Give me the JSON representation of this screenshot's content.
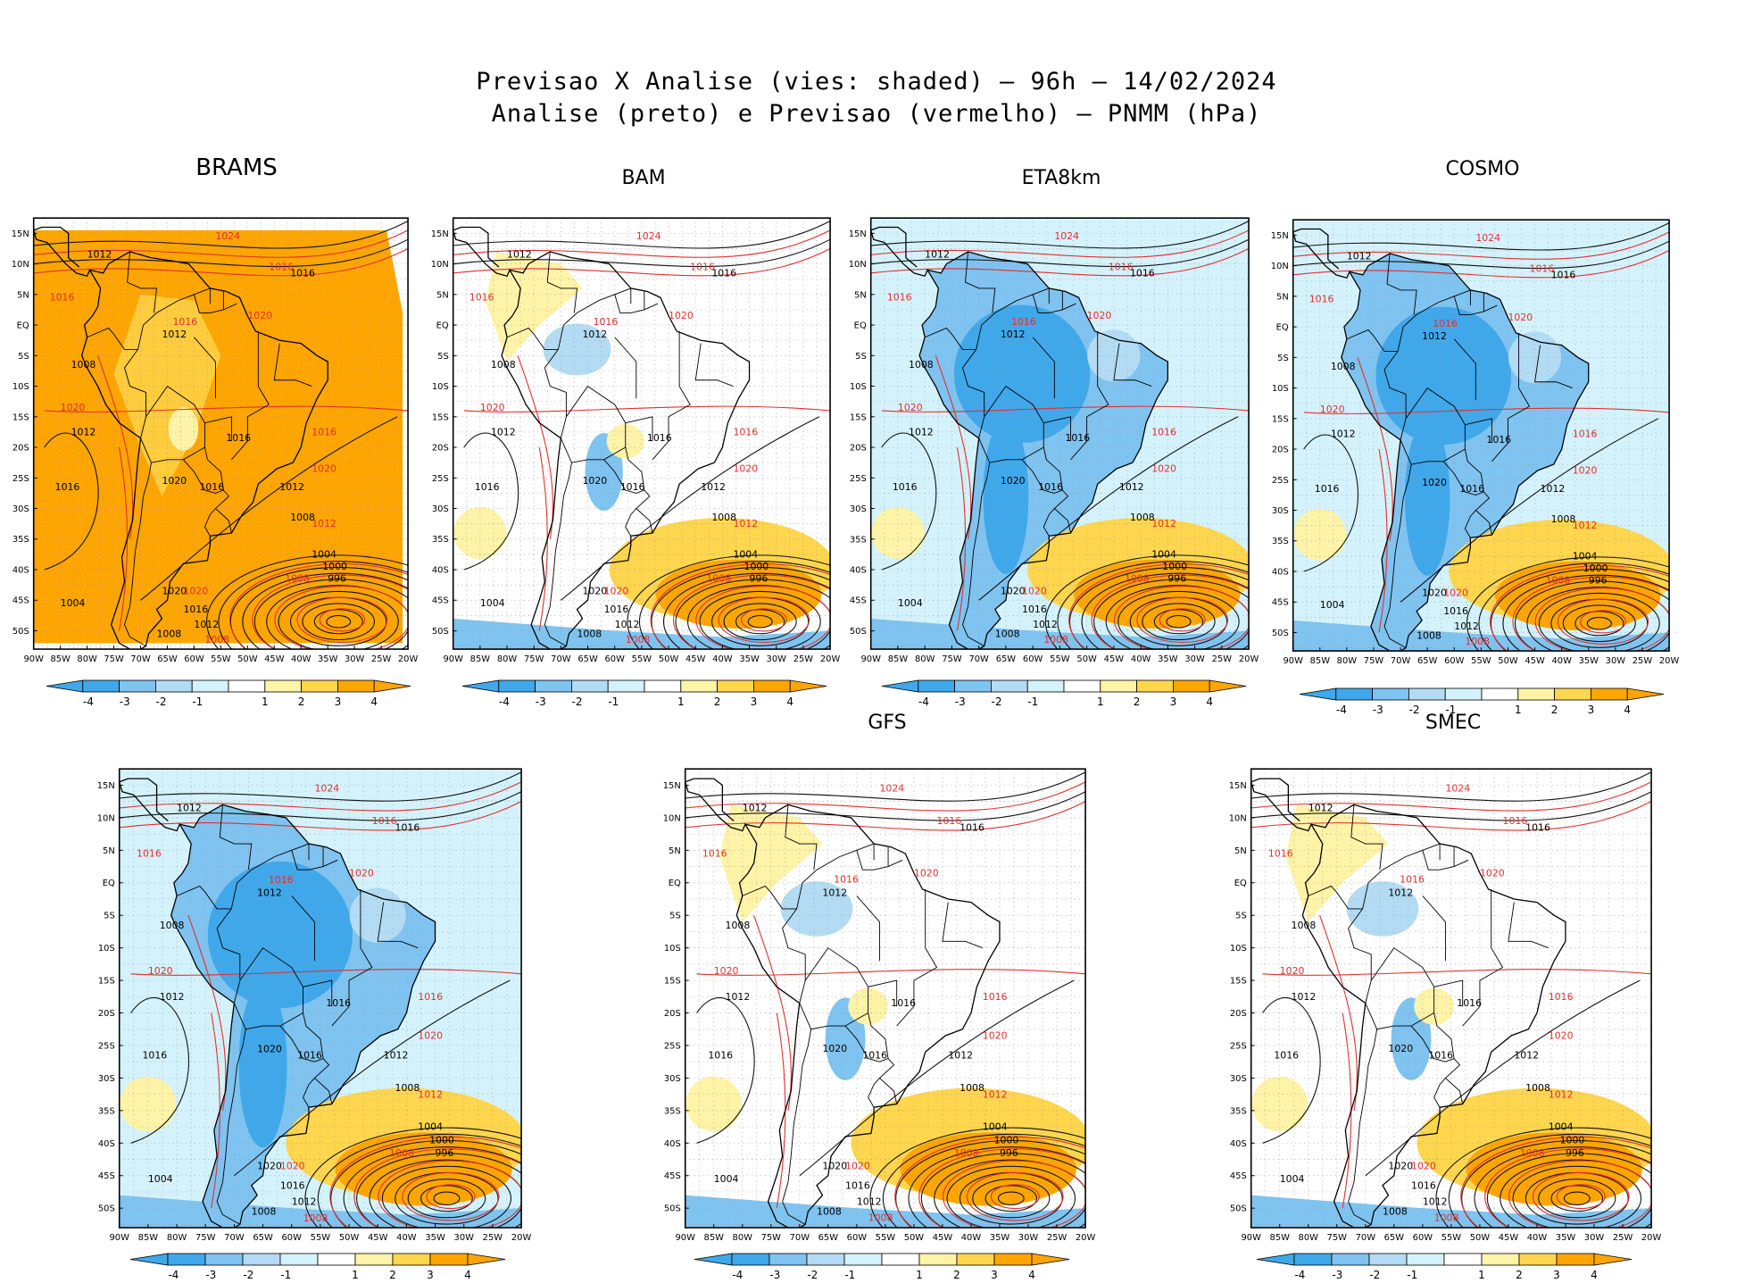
{
  "figure": {
    "title_line1": "Previsao X Analise (vies: shaded) – 96h – 14/02/2024",
    "title_line2": "Analise (preto) e Previsao (vermelho) – PNMM (hPa)"
  },
  "axes": {
    "lat_labels": [
      "15N",
      "10N",
      "5N",
      "EQ",
      "5S",
      "10S",
      "15S",
      "20S",
      "25S",
      "30S",
      "35S",
      "40S",
      "45S",
      "50S"
    ],
    "lon_labels": [
      "90W",
      "85W",
      "80W",
      "75W",
      "70W",
      "65W",
      "60W",
      "55W",
      "50W",
      "45W",
      "40W",
      "35W",
      "30W",
      "25W",
      "20W"
    ]
  },
  "colorbar": {
    "labels": [
      "-4",
      "-3",
      "-2",
      "-1",
      "1",
      "2",
      "3",
      "4"
    ],
    "colors": [
      "#3fa8ea",
      "#7fc3f0",
      "#b3dcf4",
      "#d4f2fb",
      "#ffffff",
      "#fff3a8",
      "#ffd64d",
      "#ffa500"
    ]
  },
  "panels": [
    {
      "id": "brams",
      "name": "BRAMS",
      "bias_mode": "warm"
    },
    {
      "id": "bam",
      "name": "BAM",
      "bias_mode": "mixed"
    },
    {
      "id": "eta8km",
      "name": "ETA8km",
      "bias_mode": "cold"
    },
    {
      "id": "cosmo",
      "name": "COSMO",
      "bias_mode": "cold"
    },
    {
      "id": "unnamed",
      "name": "",
      "bias_mode": "cold"
    },
    {
      "id": "gfs",
      "name": "GFS",
      "bias_mode": "mixed"
    },
    {
      "id": "smec",
      "name": "SMEC",
      "bias_mode": "mixed"
    }
  ],
  "isobar_labels": {
    "analysis": [
      {
        "text": "1012",
        "lon": -80,
        "lat": 11
      },
      {
        "text": "1016",
        "lon": -42,
        "lat": 8
      },
      {
        "text": "1012",
        "lon": -66,
        "lat": -2
      },
      {
        "text": "1008",
        "lon": -83,
        "lat": -7
      },
      {
        "text": "1012",
        "lon": -83,
        "lat": -18
      },
      {
        "text": "1016",
        "lon": -86,
        "lat": -27
      },
      {
        "text": "1016",
        "lon": -54,
        "lat": -19
      },
      {
        "text": "1020",
        "lon": -66,
        "lat": -26
      },
      {
        "text": "1016",
        "lon": -59,
        "lat": -27
      },
      {
        "text": "1012",
        "lon": -44,
        "lat": -27
      },
      {
        "text": "1008",
        "lon": -42,
        "lat": -32
      },
      {
        "text": "1004",
        "lon": -38,
        "lat": -38
      },
      {
        "text": "1000",
        "lon": -36,
        "lat": -40
      },
      {
        "text": "996",
        "lon": -35,
        "lat": -42
      },
      {
        "text": "1020",
        "lon": -66,
        "lat": -44
      },
      {
        "text": "1016",
        "lon": -62,
        "lat": -47
      },
      {
        "text": "1012",
        "lon": -60,
        "lat": -49.5
      },
      {
        "text": "1008",
        "lon": -67,
        "lat": -51
      },
      {
        "text": "1004",
        "lon": -85,
        "lat": -46
      }
    ],
    "forecast": [
      {
        "text": "1024",
        "lon": -56,
        "lat": 14
      },
      {
        "text": "1016",
        "lon": -46,
        "lat": 9
      },
      {
        "text": "1016",
        "lon": -87,
        "lat": 4
      },
      {
        "text": "1020",
        "lon": -50,
        "lat": 1
      },
      {
        "text": "1016",
        "lon": -64,
        "lat": 0
      },
      {
        "text": "1020",
        "lon": -85,
        "lat": -14
      },
      {
        "text": "1016",
        "lon": -38,
        "lat": -18
      },
      {
        "text": "1020",
        "lon": -38,
        "lat": -24
      },
      {
        "text": "1012",
        "lon": -38,
        "lat": -33
      },
      {
        "text": "1008",
        "lon": -43,
        "lat": -42
      },
      {
        "text": "1020",
        "lon": -62,
        "lat": -44
      },
      {
        "text": "1008",
        "lon": -58,
        "lat": -52
      }
    ]
  }
}
